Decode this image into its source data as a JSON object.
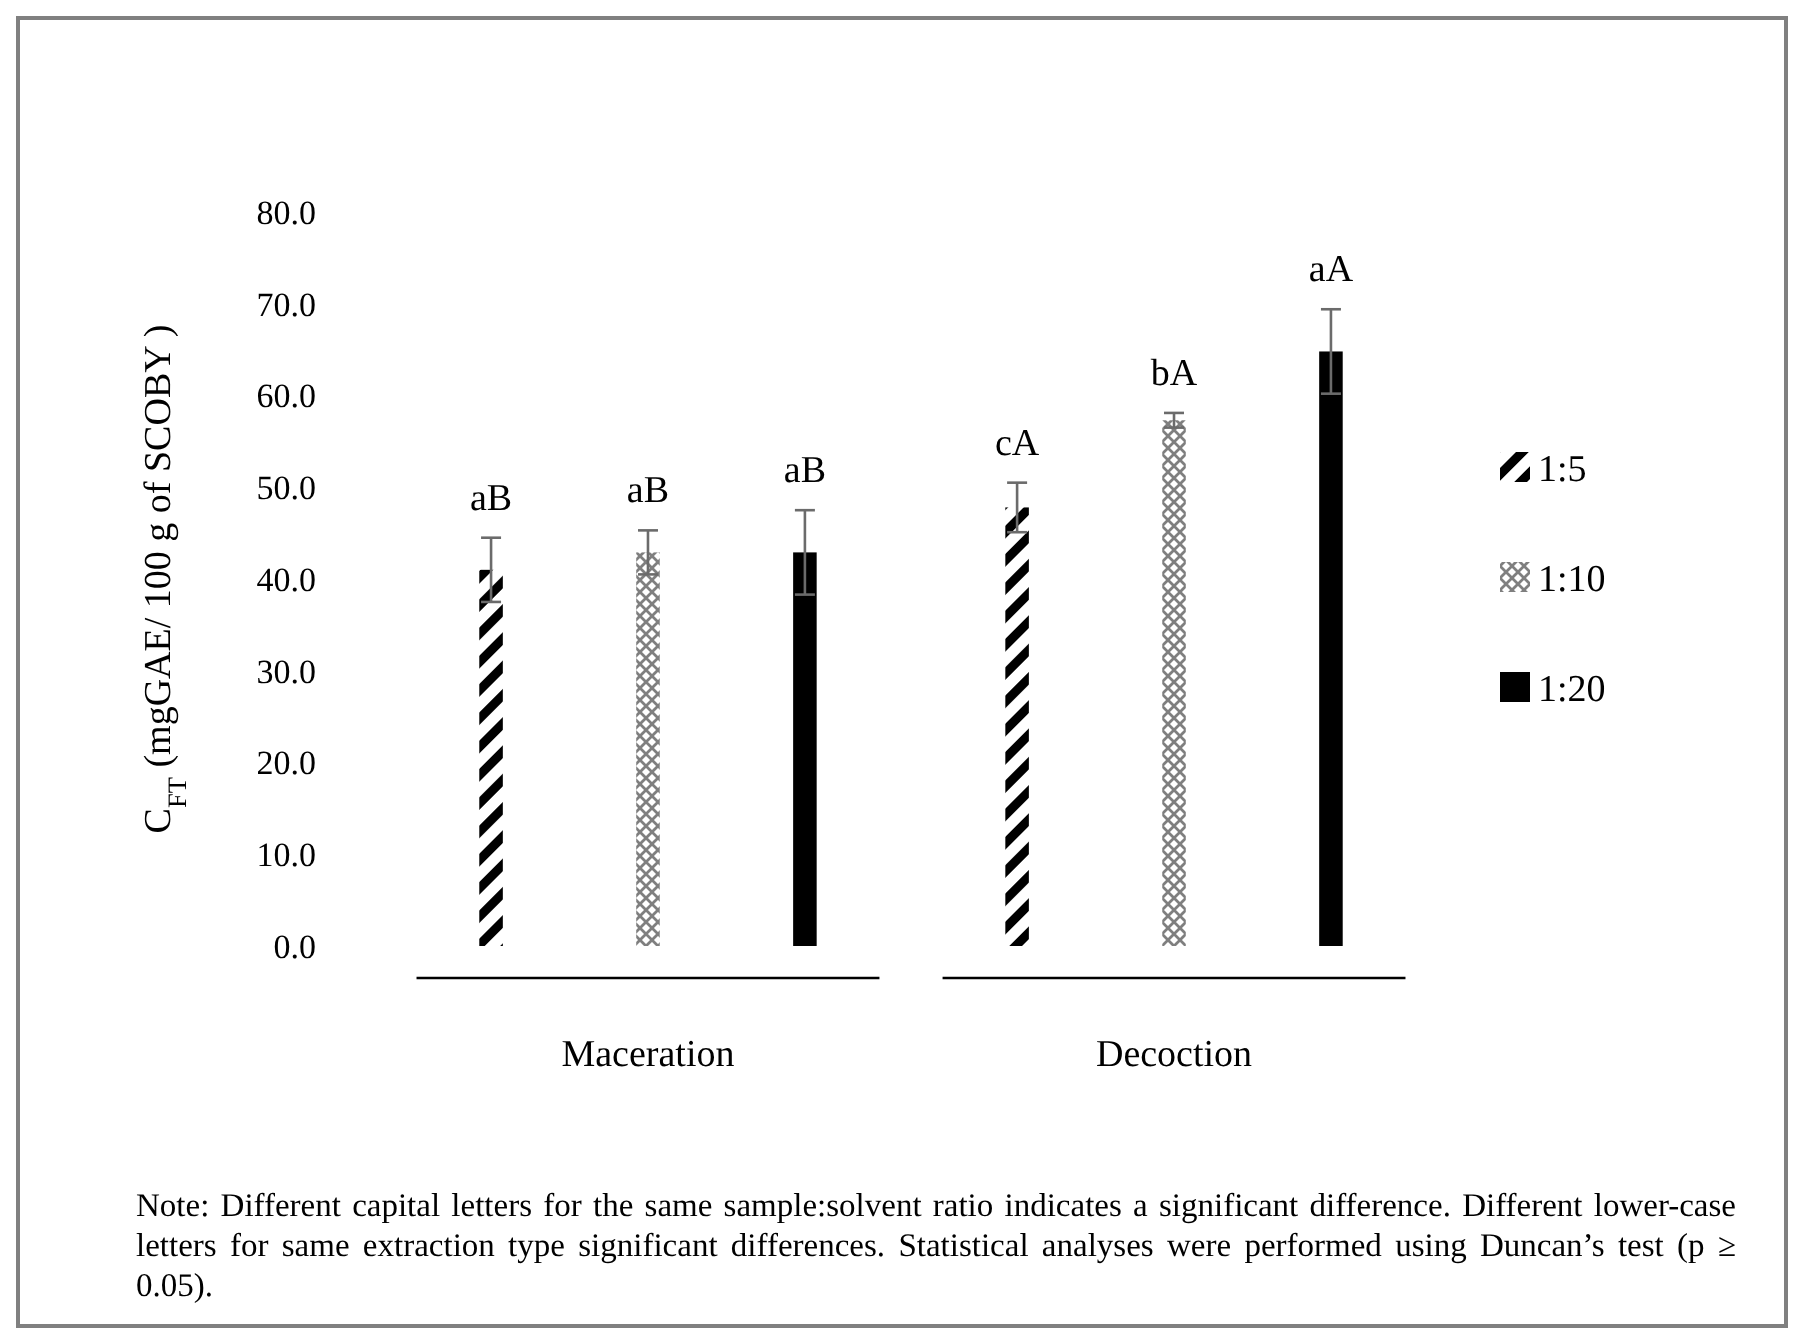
{
  "chart_data": {
    "type": "bar",
    "categories": [
      "Maceration",
      "Decoction"
    ],
    "ylabel": "C$_{FT}$ (mgGAE/ 100 g of SCOBY )",
    "series": [
      {
        "name": "1:5",
        "color": "#000000",
        "values": [
          41.0,
          47.8
        ],
        "errors": [
          3.5,
          2.7
        ],
        "value_labels": [
          "aB",
          "cA"
        ]
      },
      {
        "name": "1:10",
        "color": "#7f7f7f",
        "values": [
          42.9,
          57.3
        ],
        "errors": [
          2.4,
          0.8
        ],
        "value_labels": [
          "aB",
          "bA"
        ]
      },
      {
        "name": "1:20",
        "color": "#000000",
        "values": [
          42.9,
          64.8
        ],
        "errors": [
          4.6,
          4.6
        ],
        "value_labels": [
          "aB",
          "aA"
        ]
      }
    ],
    "ylim": [
      0,
      80
    ],
    "yticks": [
      {
        "value": 0,
        "label": "0.0"
      },
      {
        "value": 10,
        "label": "10.0"
      },
      {
        "value": 20,
        "label": "20.0"
      },
      {
        "value": 30,
        "label": "30.0"
      },
      {
        "value": 40,
        "label": "40.0"
      },
      {
        "value": 50,
        "label": "50.0"
      },
      {
        "value": 60,
        "label": "60.0"
      },
      {
        "value": 70,
        "label": "70.0"
      },
      {
        "value": 80,
        "label": "80.0"
      }
    ],
    "legend": "right",
    "annotations": [
      "Note: Different capital letters for the same sample:solvent ratio indicates a significant difference. Different lower-case letters for same extraction type significant differences. Statistical analyses were performed using Duncan’s test (p ≥ 0.05)."
    ]
  }
}
